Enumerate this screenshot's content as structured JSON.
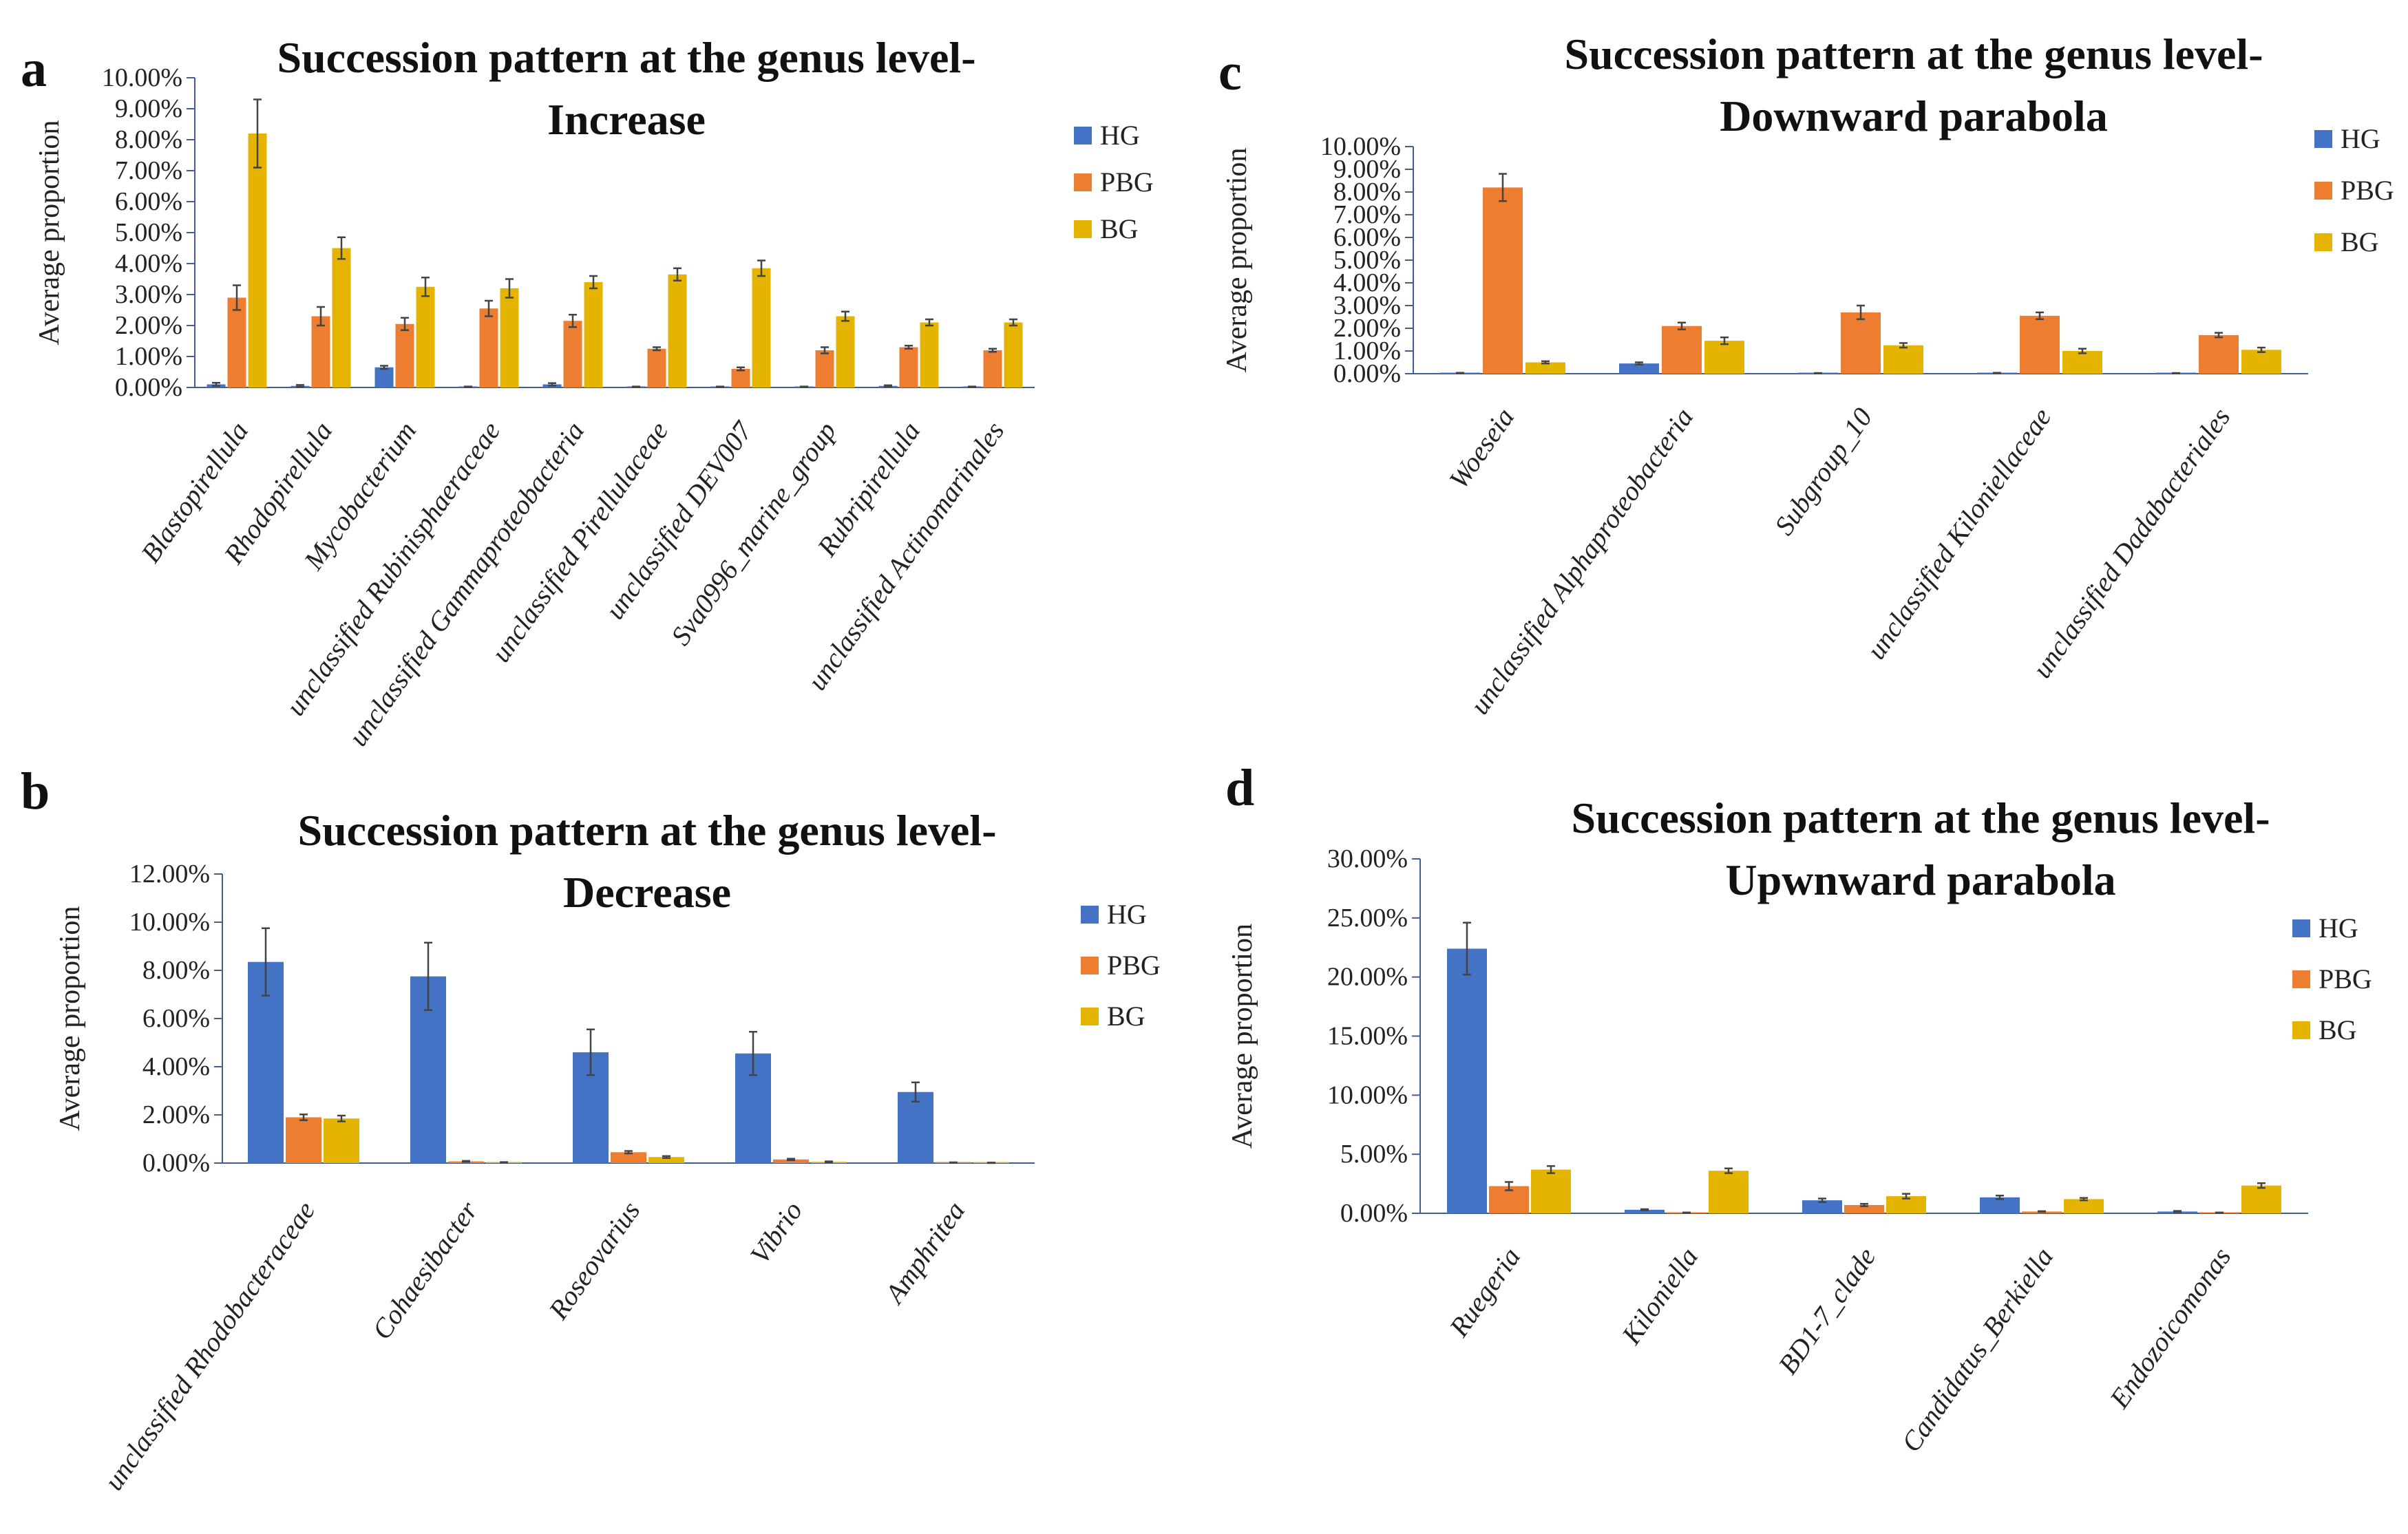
{
  "chart_data": [
    {
      "panel": "a",
      "type": "bar",
      "title": "Succession pattern at the genus  level-",
      "subtitle": "Increase",
      "ylabel": "Average proportion",
      "ylim": [
        0,
        10
      ],
      "yticks": [
        "0.00%",
        "1.00%",
        "2.00%",
        "3.00%",
        "4.00%",
        "5.00%",
        "6.00%",
        "7.00%",
        "8.00%",
        "9.00%",
        "10.00%"
      ],
      "categories": [
        "Blastopirellula",
        "Rhodopirellula",
        "Mycobacterium",
        "unclassified Rubinisphaeraceae",
        "unclassified Gammaproteobacteria",
        "unclassified Pirellulaceae",
        "unclassified DEV007",
        "Sva0996_marine_group",
        "Rubripirellula",
        "unclassified Actinomarinales"
      ],
      "series": [
        {
          "name": "HG",
          "values": [
            0.1,
            0.05,
            0.65,
            0.02,
            0.1,
            0.02,
            0.02,
            0.02,
            0.05,
            0.02
          ],
          "errors": [
            0.05,
            0.03,
            0.05,
            0.01,
            0.04,
            0.01,
            0.01,
            0.01,
            0.02,
            0.01
          ]
        },
        {
          "name": "PBG",
          "values": [
            2.9,
            2.3,
            2.05,
            2.55,
            2.15,
            1.25,
            0.6,
            1.2,
            1.3,
            1.2
          ],
          "errors": [
            0.4,
            0.3,
            0.2,
            0.25,
            0.2,
            0.05,
            0.05,
            0.1,
            0.05,
            0.05
          ]
        },
        {
          "name": "BG",
          "values": [
            8.2,
            4.5,
            3.25,
            3.2,
            3.4,
            3.65,
            3.85,
            2.3,
            2.1,
            2.1
          ],
          "errors": [
            1.1,
            0.35,
            0.3,
            0.3,
            0.2,
            0.2,
            0.25,
            0.15,
            0.1,
            0.1
          ]
        }
      ]
    },
    {
      "panel": "b",
      "type": "bar",
      "title": "Succession pattern at the genus  level-",
      "subtitle": "Decrease",
      "ylabel": "Average proportion",
      "ylim": [
        0,
        12
      ],
      "yticks": [
        "0.00%",
        "2.00%",
        "4.00%",
        "6.00%",
        "8.00%",
        "10.00%",
        "12.00%"
      ],
      "categories": [
        "unclassified Rhodobacteraceae",
        "Cohaesibacter",
        "Roseovarius",
        "Vibrio",
        "Amphritea"
      ],
      "series": [
        {
          "name": "HG",
          "values": [
            8.35,
            7.75,
            4.6,
            4.55,
            2.95
          ],
          "errors": [
            1.4,
            1.4,
            0.95,
            0.9,
            0.4
          ]
        },
        {
          "name": "PBG",
          "values": [
            1.9,
            0.07,
            0.45,
            0.15,
            0.02
          ],
          "errors": [
            0.12,
            0.02,
            0.05,
            0.03,
            0.01
          ]
        },
        {
          "name": "BG",
          "values": [
            1.85,
            0.03,
            0.25,
            0.05,
            0.01
          ],
          "errors": [
            0.12,
            0.01,
            0.04,
            0.02,
            0.01
          ]
        }
      ]
    },
    {
      "panel": "c",
      "type": "bar",
      "title": "Succession pattern at the genus  level-",
      "subtitle": "Downward parabola",
      "ylabel": "Average proportion",
      "ylim": [
        0,
        10
      ],
      "yticks": [
        "0.00%",
        "1.00%",
        "2.00%",
        "3.00%",
        "4.00%",
        "5.00%",
        "6.00%",
        "7.00%",
        "8.00%",
        "9.00%",
        "10.00%"
      ],
      "categories": [
        "Woeseia",
        "unclassified Alphaproteobacteria",
        "Subgroup_10",
        "unclassified Kiloniellaceae",
        "unclassified Dadabacteriales"
      ],
      "series": [
        {
          "name": "HG",
          "values": [
            0.03,
            0.45,
            0.02,
            0.03,
            0.02
          ],
          "errors": [
            0.01,
            0.05,
            0.01,
            0.01,
            0.01
          ]
        },
        {
          "name": "PBG",
          "values": [
            8.2,
            2.1,
            2.7,
            2.55,
            1.7
          ],
          "errors": [
            0.6,
            0.15,
            0.3,
            0.15,
            0.1
          ]
        },
        {
          "name": "BG",
          "values": [
            0.5,
            1.45,
            1.25,
            1.0,
            1.05
          ],
          "errors": [
            0.05,
            0.15,
            0.1,
            0.1,
            0.1
          ]
        }
      ]
    },
    {
      "panel": "d",
      "type": "bar",
      "title": "Succession pattern at the genus  level-",
      "subtitle": "Upwnward parabola",
      "ylabel": "Average proportion",
      "ylim": [
        0,
        30
      ],
      "yticks": [
        "0.00%",
        "5.00%",
        "10.00%",
        "15.00%",
        "20.00%",
        "25.00%",
        "30.00%"
      ],
      "categories": [
        "Ruegeria",
        "Kiloniella",
        "BD1-7_clade",
        "Candidatus_Berkiella",
        "Endozoicomonas"
      ],
      "series": [
        {
          "name": "HG",
          "values": [
            22.4,
            0.3,
            1.1,
            1.35,
            0.15
          ],
          "errors": [
            2.2,
            0.05,
            0.15,
            0.15,
            0.05
          ]
        },
        {
          "name": "PBG",
          "values": [
            2.3,
            0.05,
            0.7,
            0.15,
            0.05
          ],
          "errors": [
            0.35,
            0.02,
            0.1,
            0.03,
            0.02
          ]
        },
        {
          "name": "BG",
          "values": [
            3.7,
            3.6,
            1.45,
            1.2,
            2.35
          ],
          "errors": [
            0.3,
            0.2,
            0.2,
            0.1,
            0.2
          ]
        }
      ]
    }
  ],
  "legend_colors": {
    "HG": "#4472C4",
    "PBG": "#ED7D31",
    "BG": "#E5B400"
  }
}
